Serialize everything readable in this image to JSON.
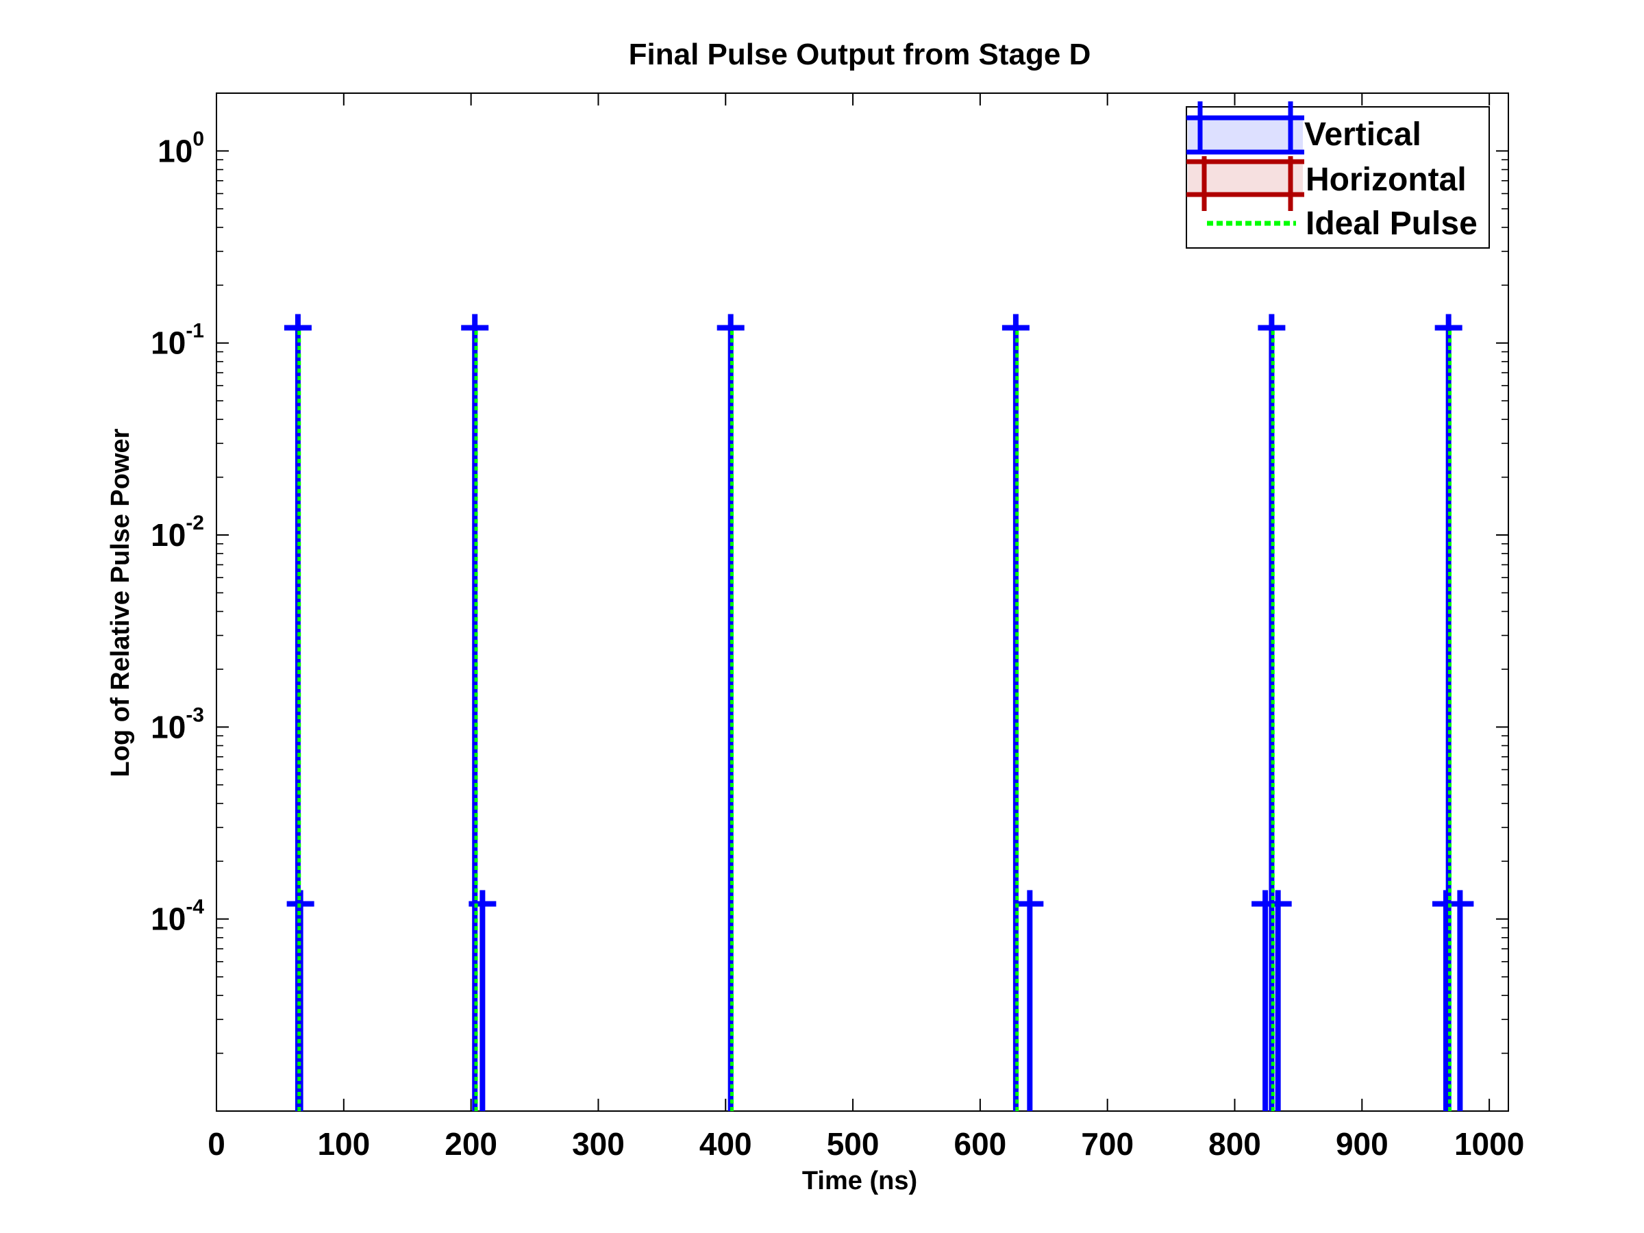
{
  "chart_data": {
    "type": "line",
    "title": "Final Pulse Output from Stage D",
    "xlabel": "Time (ns)",
    "ylabel": "Log of Relative Pulse Power",
    "xscale": "linear",
    "yscale": "log",
    "xlim": [
      0,
      1015
    ],
    "ylim": [
      1e-05,
      2
    ],
    "x_ticks": [
      0,
      100,
      200,
      300,
      400,
      500,
      600,
      700,
      800,
      900,
      1000
    ],
    "x_tick_labels": [
      "0",
      "100",
      "200",
      "300",
      "400",
      "500",
      "600",
      "700",
      "800",
      "900",
      "1000"
    ],
    "y_ticks": [
      {
        "value": 1,
        "base": "10",
        "exp": "0"
      },
      {
        "value": 0.1,
        "base": "10",
        "exp": "-1"
      },
      {
        "value": 0.01,
        "base": "10",
        "exp": "-2"
      },
      {
        "value": 0.001,
        "base": "10",
        "exp": "-3"
      },
      {
        "value": 0.0001,
        "base": "10",
        "exp": "-4"
      }
    ],
    "grid": false,
    "legend_position": "top-right",
    "colors": {
      "vertical": "#0000ff",
      "horizontal": "#b00000",
      "ideal": "#00ff00"
    },
    "series": [
      {
        "name": "Vertical",
        "pulses": [
          {
            "x": 64,
            "y": 0.12
          },
          {
            "x": 66,
            "y": 0.00012
          },
          {
            "x": 203,
            "y": 0.12
          },
          {
            "x": 209,
            "y": 0.00012
          },
          {
            "x": 404,
            "y": 0.12
          },
          {
            "x": 628,
            "y": 0.12
          },
          {
            "x": 639,
            "y": 0.00012
          },
          {
            "x": 829,
            "y": 0.12
          },
          {
            "x": 824,
            "y": 0.00012
          },
          {
            "x": 834,
            "y": 0.00012
          },
          {
            "x": 968,
            "y": 0.12
          },
          {
            "x": 966,
            "y": 0.00012
          },
          {
            "x": 977,
            "y": 0.00012
          }
        ]
      },
      {
        "name": "Horizontal",
        "pulses": []
      },
      {
        "name": "Ideal Pulse",
        "pulses": [
          {
            "x": 65,
            "y": 0.12
          },
          {
            "x": 204,
            "y": 0.12
          },
          {
            "x": 405,
            "y": 0.12
          },
          {
            "x": 629,
            "y": 0.12
          },
          {
            "x": 830,
            "y": 0.12
          },
          {
            "x": 969,
            "y": 0.12
          }
        ]
      }
    ]
  }
}
